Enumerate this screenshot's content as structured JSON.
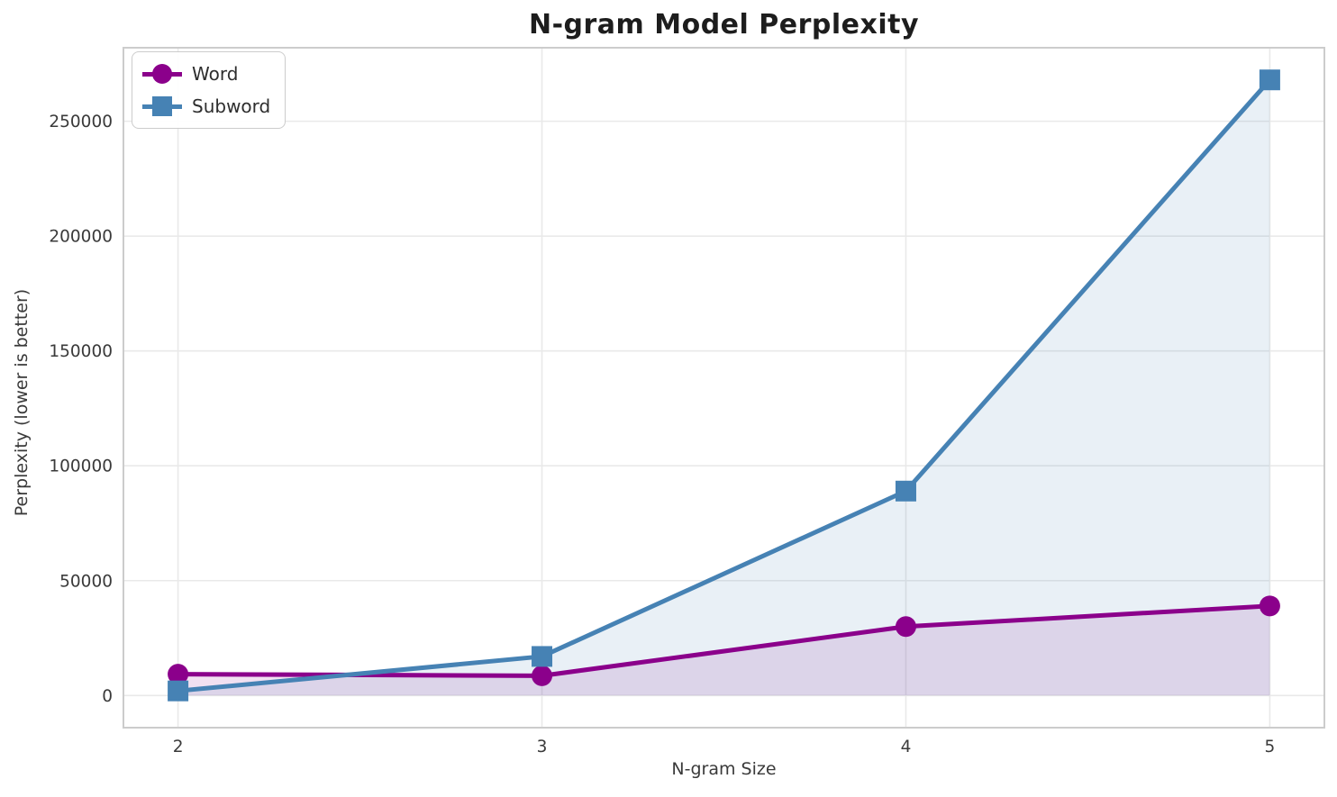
{
  "chart_data": {
    "type": "line",
    "title": "N-gram Model Perplexity",
    "xlabel": "N-gram Size",
    "ylabel": "Perplexity (lower is better)",
    "x": [
      2,
      3,
      4,
      5
    ],
    "series": [
      {
        "name": "Word",
        "color": "#8B008B",
        "marker": "circle",
        "values": [
          9300,
          8600,
          30000,
          39000
        ],
        "fill_to_zero": true,
        "fill_opacity": 0.12
      },
      {
        "name": "Subword",
        "color": "#4682B4",
        "marker": "square",
        "values": [
          2000,
          17000,
          89000,
          268000
        ],
        "fill_to_zero": true,
        "fill_opacity": 0.12
      }
    ],
    "xticks": [
      2,
      3,
      4,
      5
    ],
    "yticks": [
      0,
      50000,
      100000,
      150000,
      200000,
      250000
    ],
    "xlim": [
      1.85,
      5.15
    ],
    "ylim": [
      -14000,
      282000
    ],
    "grid": true,
    "legend_position": "upper left",
    "style": {
      "grid_color": "#e9e9e9",
      "spine_color": "#cccccc",
      "tick_label_color": "#3a3a3a",
      "background_color": "#ffffff",
      "line_width": 5,
      "marker_size": 23
    }
  }
}
